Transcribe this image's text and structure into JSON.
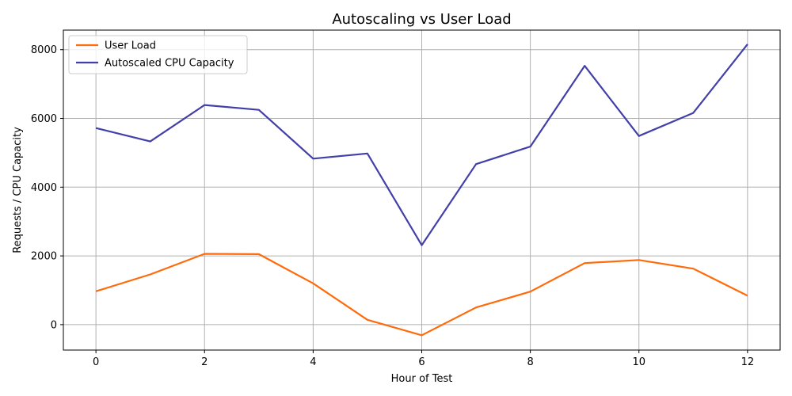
{
  "chart_data": {
    "type": "line",
    "title": "Autoscaling vs User Load",
    "xlabel": "Hour of Test",
    "ylabel": "Requests / CPU Capacity",
    "x": [
      0,
      1,
      2,
      3,
      4,
      5,
      6,
      7,
      8,
      9,
      10,
      11,
      12
    ],
    "xlim": [
      -0.6,
      12.6
    ],
    "ylim": [
      -740,
      8570
    ],
    "xticks": [
      0,
      2,
      4,
      6,
      8,
      10,
      12
    ],
    "yticks": [
      0,
      2000,
      4000,
      6000,
      8000
    ],
    "grid": true,
    "legend_position": "upper-left",
    "series": [
      {
        "name": "User Load",
        "color": "#ff6a0a",
        "values": [
          970,
          1460,
          2060,
          2050,
          1200,
          140,
          -310,
          500,
          960,
          1790,
          1880,
          1630,
          840
        ]
      },
      {
        "name": "Autoscaled CPU Capacity",
        "color": "#4240a8",
        "values": [
          5720,
          5330,
          6390,
          6250,
          4830,
          4980,
          2310,
          4670,
          5180,
          7530,
          5490,
          6160,
          8160
        ]
      }
    ]
  }
}
